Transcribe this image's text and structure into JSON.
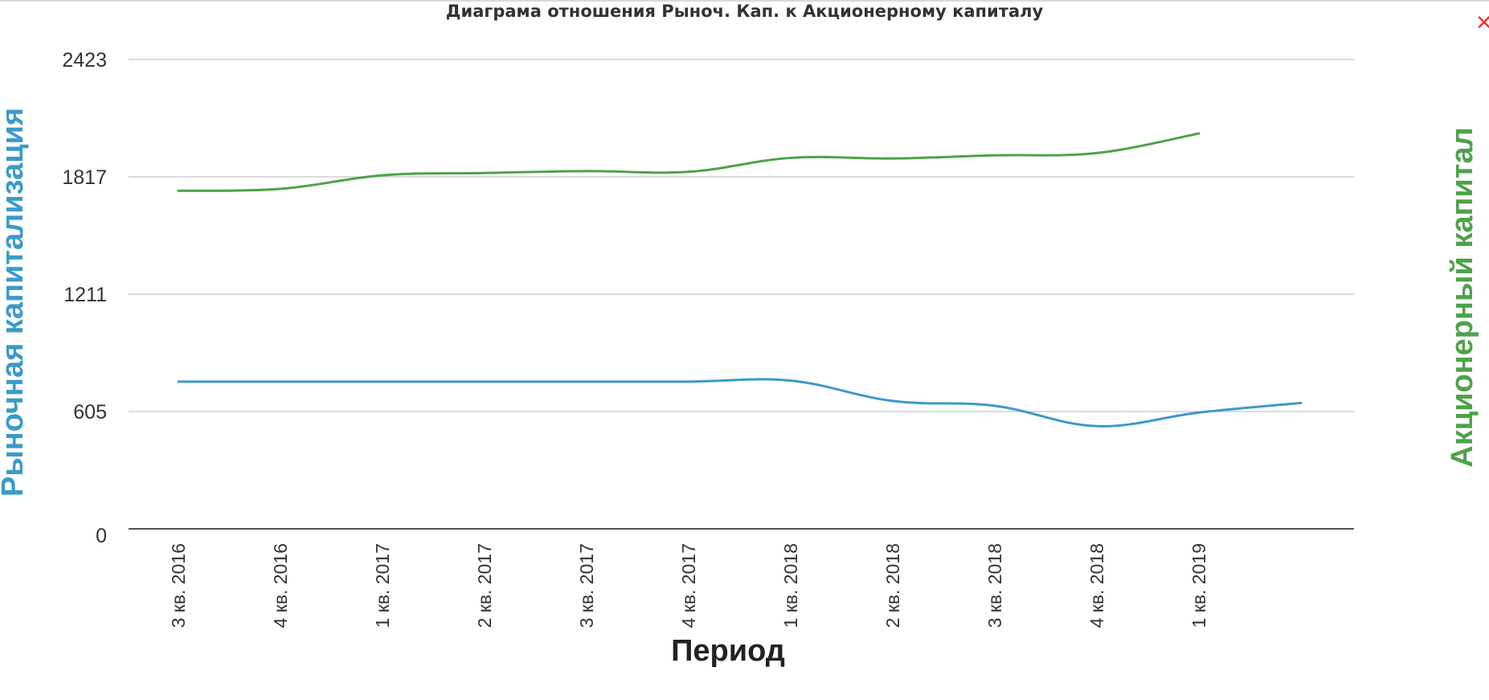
{
  "chart_data": {
    "type": "line",
    "title": "Диаграма отношения Рыноч. Кап. к Акционерному капиталу",
    "xlabel": "Период",
    "ylabel": "Рыночная капитализация",
    "y2label": "Акционерный капитал",
    "categories": [
      "3 кв. 2016",
      "4 кв. 2016",
      "1 кв. 2017",
      "2 кв. 2017",
      "3 кв. 2017",
      "4 кв. 2017",
      "1 кв. 2018",
      "2 кв. 2018",
      "3 кв. 2018",
      "4 кв. 2018",
      "1 кв. 2019",
      ""
    ],
    "yticks": [
      0,
      605,
      1211,
      1817,
      2423
    ],
    "ylim": [
      0,
      2423
    ],
    "grid": true,
    "legend": "none",
    "series": [
      {
        "color": "#3a9ac9",
        "axis": "left",
        "values": [
          760,
          760,
          760,
          760,
          760,
          760,
          765,
          660,
          635,
          530,
          600,
          650
        ]
      },
      {
        "color": "#4ea24a",
        "axis": "right",
        "values": [
          1745,
          1755,
          1825,
          1837,
          1847,
          1843,
          1915,
          1912,
          1928,
          1940,
          2041,
          null
        ]
      }
    ]
  },
  "ui": {
    "close_glyph": "✕"
  }
}
